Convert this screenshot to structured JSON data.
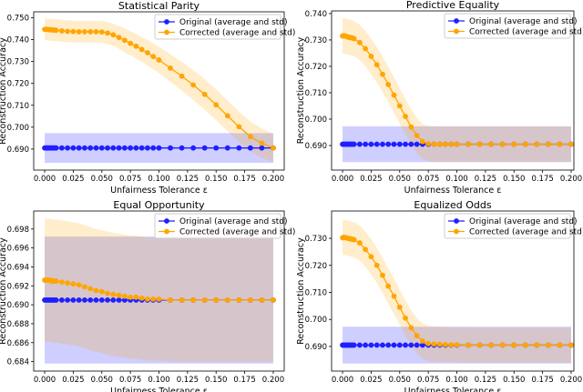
{
  "chart_data": [
    {
      "type": "line",
      "title": "Statistical Parity",
      "xlabel": "Unfairness Tolerance ε",
      "ylabel": "Reconstruction Accuracy",
      "xlim": [
        -0.0096,
        0.2096
      ],
      "ylim": [
        0.6804,
        0.7527
      ],
      "xticks": [
        "0.000",
        "0.025",
        "0.050",
        "0.075",
        "0.100",
        "0.125",
        "0.150",
        "0.175",
        "0.200"
      ],
      "yticks": [
        "0.690",
        "0.700",
        "0.710",
        "0.720",
        "0.730",
        "0.740",
        "0.750"
      ],
      "grid": false,
      "legend": "top-right",
      "x": [
        0,
        0.001,
        0.002,
        0.003,
        0.004,
        0.005,
        0.006,
        0.007,
        0.008,
        0.009,
        0.01,
        0.015,
        0.02,
        0.025,
        0.03,
        0.035,
        0.04,
        0.045,
        0.05,
        0.055,
        0.06,
        0.065,
        0.07,
        0.075,
        0.08,
        0.085,
        0.09,
        0.095,
        0.1,
        0.11,
        0.12,
        0.13,
        0.14,
        0.15,
        0.16,
        0.17,
        0.18,
        0.19,
        0.2
      ],
      "series": [
        {
          "name": "Original (average and std)",
          "color": "#1f1fff",
          "mean": 0.6905,
          "std": 0.0068
        },
        {
          "name": "Corrected (average and std)",
          "color": "#ffa500",
          "values": [
            0.7447,
            0.7447,
            0.7447,
            0.7446,
            0.7446,
            0.7445,
            0.7445,
            0.7444,
            0.7444,
            0.7443,
            0.7443,
            0.744,
            0.7438,
            0.7437,
            0.7436,
            0.7436,
            0.7436,
            0.7436,
            0.7435,
            0.743,
            0.7422,
            0.741,
            0.7397,
            0.7383,
            0.737,
            0.7355,
            0.734,
            0.7323,
            0.7307,
            0.727,
            0.7233,
            0.7193,
            0.715,
            0.7102,
            0.7052,
            0.7002,
            0.6957,
            0.6927,
            0.6905
          ],
          "std": [
            0.005,
            0.005,
            0.005,
            0.005,
            0.005,
            0.005,
            0.005,
            0.005,
            0.005,
            0.005,
            0.005,
            0.005,
            0.005,
            0.005,
            0.005,
            0.005,
            0.005,
            0.005,
            0.005,
            0.005,
            0.005,
            0.0052,
            0.0054,
            0.0055,
            0.0056,
            0.0057,
            0.0058,
            0.0059,
            0.006,
            0.0063,
            0.0066,
            0.0068,
            0.007,
            0.007,
            0.007,
            0.007,
            0.0069,
            0.0067,
            0.0065
          ]
        }
      ]
    },
    {
      "type": "line",
      "title": "Predictive Equality",
      "xlabel": "Unfairness Tolerance ε",
      "ylabel": "Reconstruction Accuracy",
      "xlim": [
        -0.0096,
        0.2024
      ],
      "ylim": [
        0.6807,
        0.741
      ],
      "xticks": [
        "0.000",
        "0.025",
        "0.050",
        "0.075",
        "0.100",
        "0.125",
        "0.150",
        "0.175",
        "0.200"
      ],
      "yticks": [
        "0.690",
        "0.700",
        "0.710",
        "0.720",
        "0.730",
        "0.740"
      ],
      "grid": false,
      "legend": "top-right",
      "x": [
        0,
        0.001,
        0.002,
        0.003,
        0.004,
        0.005,
        0.006,
        0.007,
        0.008,
        0.009,
        0.01,
        0.015,
        0.02,
        0.025,
        0.03,
        0.035,
        0.04,
        0.045,
        0.05,
        0.055,
        0.06,
        0.065,
        0.07,
        0.075,
        0.08,
        0.085,
        0.09,
        0.095,
        0.1,
        0.11,
        0.12,
        0.13,
        0.14,
        0.15,
        0.16,
        0.17,
        0.18,
        0.19,
        0.2
      ],
      "series": [
        {
          "name": "Original (average and std)",
          "color": "#1f1fff",
          "mean": 0.6905,
          "std": 0.0068
        },
        {
          "name": "Corrected (average and std)",
          "color": "#ffa500",
          "values": [
            0.7315,
            0.7316,
            0.7315,
            0.7314,
            0.7312,
            0.7311,
            0.731,
            0.7309,
            0.7308,
            0.7307,
            0.7305,
            0.729,
            0.7267,
            0.7238,
            0.7206,
            0.717,
            0.7131,
            0.7091,
            0.705,
            0.701,
            0.697,
            0.6938,
            0.6915,
            0.6907,
            0.6905,
            0.6905,
            0.6905,
            0.6905,
            0.6905,
            0.6905,
            0.6905,
            0.6905,
            0.6905,
            0.6905,
            0.6905,
            0.6905,
            0.6905,
            0.6905,
            0.6905
          ],
          "std": 0.0067
        }
      ]
    },
    {
      "type": "line",
      "title": "Equal Opportunity",
      "xlabel": "Unfairness Tolerance ε",
      "ylabel": "Reconstruction Accuracy",
      "xlim": [
        -0.0096,
        0.2096
      ],
      "ylim": [
        0.683,
        0.6999
      ],
      "xticks": [
        "0.000",
        "0.025",
        "0.050",
        "0.075",
        "0.100",
        "0.125",
        "0.150",
        "0.175",
        "0.200"
      ],
      "yticks": [
        "0.684",
        "0.686",
        "0.688",
        "0.690",
        "0.692",
        "0.694",
        "0.696",
        "0.698"
      ],
      "grid": false,
      "legend": "top-right",
      "x": [
        0,
        0.001,
        0.002,
        0.003,
        0.004,
        0.005,
        0.006,
        0.007,
        0.008,
        0.009,
        0.01,
        0.015,
        0.02,
        0.025,
        0.03,
        0.035,
        0.04,
        0.045,
        0.05,
        0.055,
        0.06,
        0.065,
        0.07,
        0.075,
        0.08,
        0.085,
        0.09,
        0.095,
        0.1,
        0.11,
        0.12,
        0.13,
        0.14,
        0.15,
        0.16,
        0.17,
        0.18,
        0.19,
        0.2
      ],
      "series": [
        {
          "name": "Original (average and std)",
          "color": "#1f1fff",
          "mean": 0.6905,
          "std": 0.0067
        },
        {
          "name": "Corrected (average and std)",
          "color": "#ffa500",
          "values": [
            0.6926,
            0.6926,
            0.6926,
            0.6926,
            0.6926,
            0.6926,
            0.6925,
            0.6925,
            0.6925,
            0.6925,
            0.6925,
            0.6924,
            0.6923,
            0.6922,
            0.6921,
            0.6919,
            0.6917,
            0.6915,
            0.6914,
            0.6912,
            0.6911,
            0.691,
            0.6909,
            0.6908,
            0.6908,
            0.6907,
            0.6906,
            0.6906,
            0.6906,
            0.6905,
            0.6905,
            0.6905,
            0.6905,
            0.6905,
            0.6905,
            0.6905,
            0.6905,
            0.6905,
            0.6905
          ],
          "std": 0.0065
        }
      ]
    },
    {
      "type": "line",
      "title": "Equalized Odds",
      "xlabel": "Unfairness Tolerance ε",
      "ylabel": "Reconstruction Accuracy",
      "xlim": [
        -0.0096,
        0.2024
      ],
      "ylim": [
        0.6809,
        0.7401
      ],
      "xticks": [
        "0.000",
        "0.025",
        "0.050",
        "0.075",
        "0.100",
        "0.125",
        "0.150",
        "0.175",
        "0.200"
      ],
      "yticks": [
        "0.690",
        "0.700",
        "0.710",
        "0.720",
        "0.730"
      ],
      "grid": false,
      "legend": "top-right",
      "x": [
        0,
        0.001,
        0.002,
        0.003,
        0.004,
        0.005,
        0.006,
        0.007,
        0.008,
        0.009,
        0.01,
        0.015,
        0.02,
        0.025,
        0.03,
        0.035,
        0.04,
        0.045,
        0.05,
        0.055,
        0.06,
        0.065,
        0.07,
        0.075,
        0.08,
        0.085,
        0.09,
        0.095,
        0.1,
        0.11,
        0.12,
        0.13,
        0.14,
        0.15,
        0.16,
        0.17,
        0.18,
        0.19,
        0.2
      ],
      "series": [
        {
          "name": "Original (average and std)",
          "color": "#1f1fff",
          "mean": 0.6905,
          "std": 0.0068
        },
        {
          "name": "Corrected (average and std)",
          "color": "#ffa500",
          "values": [
            0.7302,
            0.7304,
            0.7303,
            0.7302,
            0.7301,
            0.73,
            0.7299,
            0.7298,
            0.7297,
            0.7296,
            0.7295,
            0.7283,
            0.7259,
            0.7232,
            0.72,
            0.7163,
            0.7123,
            0.7086,
            0.7045,
            0.7005,
            0.6969,
            0.694,
            0.692,
            0.6911,
            0.6909,
            0.6908,
            0.6907,
            0.6906,
            0.6906,
            0.6905,
            0.6905,
            0.6905,
            0.6905,
            0.6905,
            0.6905,
            0.6905,
            0.6905,
            0.6905,
            0.6905
          ],
          "std": 0.0065
        }
      ]
    }
  ]
}
